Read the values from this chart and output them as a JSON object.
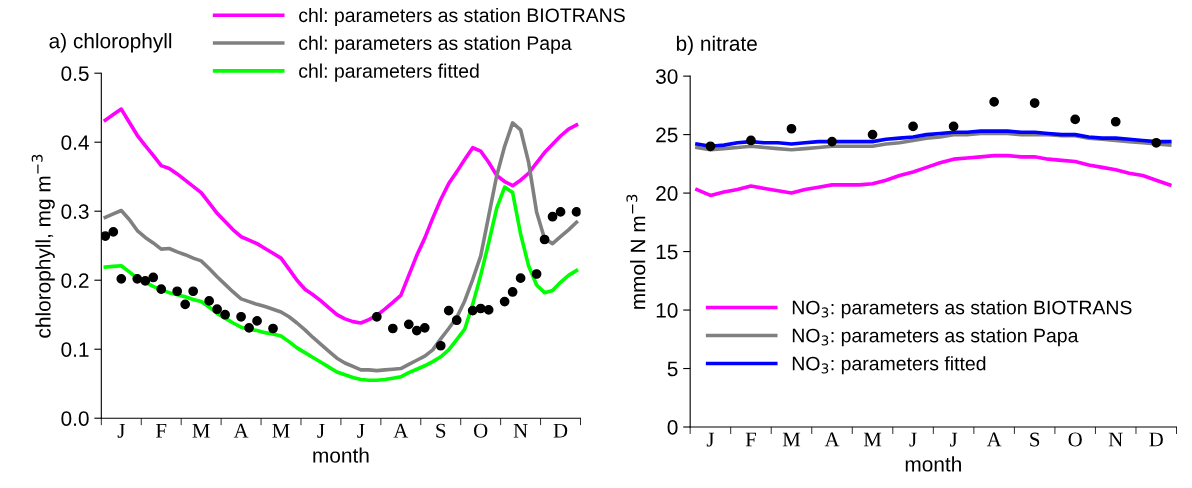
{
  "chart_data": [
    {
      "type": "line",
      "title": "a) chlorophyll",
      "xlabel": "month",
      "ylabel": "chlorophyll, mg m$^{−3}$",
      "ylim": [
        0,
        0.5
      ],
      "categories": [
        null,
        null,
        "J",
        null,
        null,
        null,
        null,
        "F",
        null,
        null,
        null,
        null,
        "M",
        null,
        null,
        null,
        null,
        "A",
        null,
        null,
        null,
        null,
        "M",
        null,
        null,
        null,
        null,
        "J",
        null,
        null,
        null,
        null,
        "J",
        null,
        null,
        null,
        null,
        "A",
        null,
        null,
        null,
        null,
        "S",
        null,
        null,
        null,
        null,
        "O",
        null,
        null,
        null,
        null,
        "N",
        null,
        null,
        null,
        null,
        "D",
        null,
        null
      ],
      "yticks": [
        {
          "value": 0,
          "label": "0.0"
        },
        {
          "value": 0.1,
          "label": "0.1"
        },
        {
          "value": 0.2,
          "label": "0.2"
        },
        {
          "value": 0.3,
          "label": "0.3"
        },
        {
          "value": 0.4,
          "label": "0.4"
        },
        {
          "value": 0.5,
          "label": "0.5"
        }
      ],
      "legend": "top",
      "line_style": "solid",
      "marker": "none",
      "series": [
        {
          "name": "chl: parameters as station BIOTRANS",
          "color": "#ff00ff",
          "values": [
            0.432,
            0.44,
            0.448,
            0.429,
            0.41,
            0.395,
            0.381,
            0.366,
            0.362,
            0.354,
            0.345,
            0.336,
            0.327,
            0.312,
            0.297,
            0.285,
            0.273,
            0.263,
            0.258,
            0.253,
            0.246,
            0.239,
            0.232,
            0.216,
            0.2,
            0.187,
            0.179,
            0.17,
            0.16,
            0.15,
            0.144,
            0.14,
            0.138,
            0.143,
            0.149,
            0.158,
            0.168,
            0.178,
            0.207,
            0.236,
            0.261,
            0.29,
            0.317,
            0.34,
            0.357,
            0.375,
            0.392,
            0.387,
            0.371,
            0.352,
            0.343,
            0.337,
            0.345,
            0.355,
            0.37,
            0.385,
            0.397,
            0.409,
            0.419,
            0.425
          ]
        },
        {
          "name": "chl: parameters as station Papa",
          "color": "#808080",
          "values": [
            0.291,
            0.296,
            0.301,
            0.288,
            0.272,
            0.262,
            0.254,
            0.245,
            0.246,
            0.241,
            0.237,
            0.232,
            0.228,
            0.217,
            0.205,
            0.194,
            0.183,
            0.173,
            0.169,
            0.165,
            0.162,
            0.158,
            0.154,
            0.147,
            0.138,
            0.128,
            0.117,
            0.107,
            0.097,
            0.087,
            0.08,
            0.075,
            0.07,
            0.07,
            0.069,
            0.07,
            0.071,
            0.072,
            0.078,
            0.084,
            0.09,
            0.099,
            0.115,
            0.13,
            0.146,
            0.17,
            0.201,
            0.235,
            0.293,
            0.351,
            0.394,
            0.428,
            0.418,
            0.371,
            0.299,
            0.26,
            0.253,
            0.263,
            0.273,
            0.284
          ]
        },
        {
          "name": "chl: parameters fitted",
          "color": "#00ff00",
          "values": [
            0.219,
            0.22,
            0.221,
            0.212,
            0.203,
            0.197,
            0.191,
            0.186,
            0.182,
            0.179,
            0.176,
            0.172,
            0.169,
            0.161,
            0.152,
            0.145,
            0.138,
            0.132,
            0.129,
            0.127,
            0.124,
            0.122,
            0.119,
            0.111,
            0.102,
            0.095,
            0.088,
            0.081,
            0.074,
            0.067,
            0.063,
            0.059,
            0.056,
            0.055,
            0.055,
            0.056,
            0.058,
            0.06,
            0.066,
            0.071,
            0.076,
            0.082,
            0.089,
            0.099,
            0.114,
            0.129,
            0.165,
            0.207,
            0.254,
            0.304,
            0.335,
            0.327,
            0.267,
            0.221,
            0.193,
            0.182,
            0.185,
            0.197,
            0.207,
            0.214
          ]
        },
        {
          "type": "scatter",
          "marker": "circle",
          "color": "#000000",
          "values": [
            0.264,
            0.27,
            0.202,
            null,
            0.202,
            0.199,
            0.204,
            0.187,
            null,
            0.184,
            0.165,
            0.184,
            null,
            0.17,
            0.158,
            0.15,
            null,
            0.147,
            0.131,
            0.141,
            null,
            0.13,
            null,
            null,
            null,
            null,
            null,
            null,
            null,
            null,
            null,
            null,
            null,
            null,
            0.147,
            null,
            0.13,
            null,
            0.136,
            0.127,
            0.131,
            null,
            0.105,
            0.156,
            0.142,
            null,
            0.156,
            0.159,
            0.157,
            null,
            0.169,
            0.183,
            0.203,
            null,
            0.209,
            0.259,
            0.292,
            0.299,
            null,
            0.299
          ]
        }
      ]
    },
    {
      "type": "line",
      "title": "b) nitrate",
      "xlabel": "month",
      "ylabel": "mmol N m$^{−3}$",
      "ylim": [
        0,
        30
      ],
      "categories": [
        null,
        "J",
        null,
        null,
        "F",
        null,
        null,
        "M",
        null,
        null,
        "A",
        null,
        null,
        "M",
        null,
        null,
        "J",
        null,
        null,
        "J",
        null,
        null,
        "A",
        null,
        null,
        "S",
        null,
        null,
        "O",
        null,
        null,
        "N",
        null,
        null,
        "D",
        null
      ],
      "yticks": [
        0,
        5,
        10,
        15,
        20,
        25,
        30
      ],
      "legend": "bottom",
      "line_style": "solid",
      "marker": "none",
      "series": [
        {
          "name": "NO$_{3}$: parameters as station BIOTRANS",
          "color": "#ff00ff",
          "values": [
            20.3,
            19.8,
            20.1,
            20.3,
            20.6,
            20.4,
            20.2,
            20.0,
            20.3,
            20.5,
            20.7,
            20.7,
            20.7,
            20.8,
            21.1,
            21.5,
            21.8,
            22.2,
            22.6,
            22.9,
            23.0,
            23.1,
            23.2,
            23.2,
            23.1,
            23.1,
            22.9,
            22.8,
            22.7,
            22.4,
            22.2,
            22.0,
            21.7,
            21.5,
            21.1,
            20.7
          ]
        },
        {
          "name": "NO$_{3}$: parameters as station Papa",
          "color": "#808080",
          "values": [
            23.9,
            23.7,
            23.8,
            23.9,
            24.0,
            23.9,
            23.8,
            23.7,
            23.8,
            23.9,
            24.0,
            24.0,
            24.0,
            24.0,
            24.2,
            24.3,
            24.5,
            24.7,
            24.8,
            25.0,
            25.0,
            25.1,
            25.1,
            25.1,
            25.0,
            25.0,
            25.0,
            24.9,
            24.9,
            24.7,
            24.6,
            24.5,
            24.4,
            24.3,
            24.2,
            24.1
          ]
        },
        {
          "name": "NO$_{3}$: parameters fitted",
          "color": "#0000ff",
          "values": [
            24.2,
            24.0,
            24.1,
            24.3,
            24.4,
            24.3,
            24.3,
            24.2,
            24.3,
            24.4,
            24.4,
            24.4,
            24.4,
            24.4,
            24.6,
            24.7,
            24.8,
            25.0,
            25.1,
            25.2,
            25.2,
            25.3,
            25.3,
            25.3,
            25.2,
            25.2,
            25.1,
            25.0,
            25.0,
            24.8,
            24.7,
            24.7,
            24.6,
            24.5,
            24.4,
            24.4
          ]
        },
        {
          "type": "scatter",
          "marker": "circle",
          "color": "#000000",
          "values": [
            null,
            24.0,
            null,
            null,
            24.5,
            null,
            null,
            25.5,
            null,
            null,
            24.4,
            null,
            null,
            25.0,
            null,
            null,
            25.7,
            null,
            null,
            25.7,
            null,
            null,
            27.8,
            null,
            null,
            27.7,
            null,
            null,
            26.3,
            null,
            null,
            26.1,
            null,
            null,
            24.3,
            null
          ]
        }
      ]
    }
  ]
}
